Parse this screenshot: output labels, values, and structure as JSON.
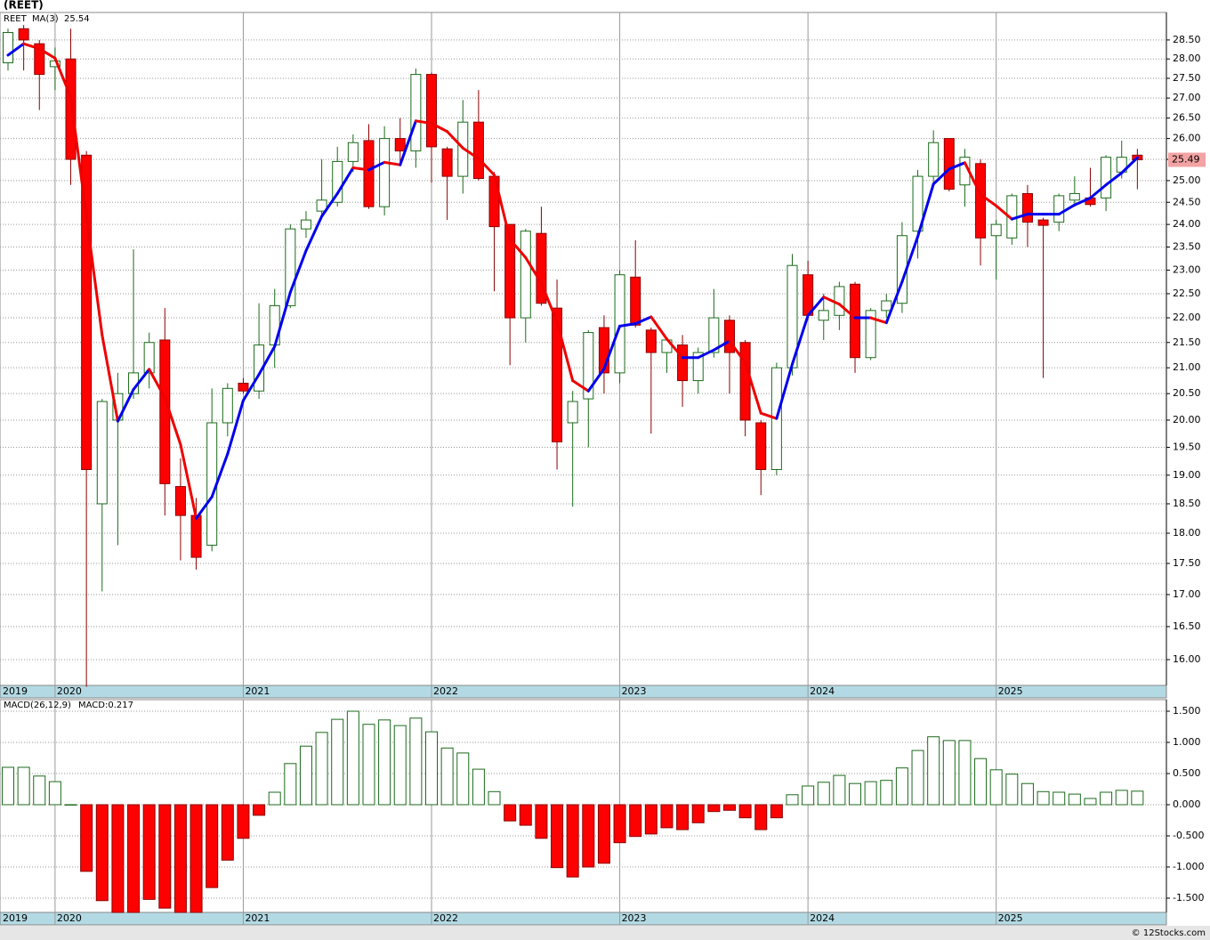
{
  "chart_data": [
    {
      "type": "candlestick",
      "title": "(REET)",
      "name": "REET",
      "categories": [
        "2019",
        null,
        null,
        "2020",
        null,
        null,
        null,
        null,
        null,
        null,
        null,
        null,
        null,
        null,
        null,
        "2021",
        null,
        null,
        null,
        null,
        null,
        null,
        null,
        null,
        null,
        null,
        null,
        "2022",
        null,
        null,
        null,
        null,
        null,
        null,
        null,
        null,
        null,
        null,
        null,
        "2023",
        null,
        null,
        null,
        null,
        null,
        null,
        null,
        null,
        null,
        null,
        null,
        "2024",
        null,
        null,
        null,
        null,
        null,
        null,
        null,
        null,
        null,
        null,
        null,
        "2025",
        null,
        null,
        null,
        null,
        null,
        null,
        null,
        null,
        null
      ],
      "open": [
        27.9,
        28.8,
        28.4,
        27.8,
        28.0,
        25.6,
        18.5,
        20.0,
        20.5,
        20.9,
        21.55,
        18.8,
        18.3,
        17.8,
        19.95,
        20.7,
        20.55,
        21.45,
        22.25,
        23.9,
        24.3,
        24.5,
        25.45,
        25.95,
        24.4,
        26.0,
        25.7,
        27.6,
        25.75,
        25.1,
        26.4,
        25.1,
        24.0,
        22.0,
        23.8,
        22.2,
        19.95,
        20.4,
        21.8,
        20.9,
        22.85,
        21.75,
        21.3,
        21.45,
        20.75,
        21.3,
        21.95,
        21.5,
        19.95,
        19.1,
        21.0,
        22.9,
        21.95,
        22.05,
        22.7,
        21.2,
        22.15,
        22.3,
        23.85,
        25.1,
        26.0,
        24.9,
        25.4,
        23.75,
        23.7,
        24.7,
        24.1,
        24.05,
        24.55,
        24.6,
        24.6,
        25.2,
        25.6
      ],
      "high": [
        28.8,
        28.9,
        28.5,
        28.3,
        28.8,
        25.7,
        20.4,
        20.9,
        23.45,
        21.7,
        22.2,
        19.3,
        18.6,
        20.6,
        20.7,
        20.8,
        22.3,
        22.6,
        24.0,
        24.3,
        25.5,
        25.8,
        26.1,
        26.35,
        26.3,
        26.5,
        27.75,
        27.65,
        25.8,
        26.95,
        27.2,
        25.2,
        24.0,
        23.9,
        24.4,
        22.8,
        20.55,
        21.75,
        22.05,
        23.0,
        23.65,
        21.8,
        21.6,
        21.65,
        21.4,
        22.6,
        22.05,
        21.55,
        20.0,
        21.1,
        23.35,
        23.2,
        22.5,
        22.75,
        22.75,
        22.2,
        22.5,
        24.05,
        25.25,
        26.2,
        26.0,
        25.75,
        25.5,
        24.1,
        24.7,
        24.9,
        24.15,
        24.7,
        25.1,
        25.3,
        25.6,
        25.95,
        25.75
      ],
      "low": [
        27.7,
        27.7,
        26.7,
        27.2,
        24.9,
        15.6,
        17.05,
        17.8,
        20.4,
        20.6,
        18.3,
        17.55,
        17.4,
        17.7,
        19.7,
        20.5,
        20.4,
        21.0,
        22.2,
        23.7,
        24.2,
        24.4,
        25.2,
        24.35,
        24.2,
        25.4,
        25.3,
        24.95,
        24.1,
        24.7,
        25.0,
        22.55,
        21.05,
        21.5,
        22.25,
        19.1,
        18.45,
        19.5,
        20.5,
        20.7,
        21.8,
        19.75,
        20.9,
        20.25,
        20.5,
        21.2,
        20.5,
        19.7,
        18.65,
        19.0,
        20.85,
        21.95,
        21.55,
        21.75,
        20.9,
        21.15,
        22.0,
        22.1,
        23.25,
        24.95,
        24.75,
        24.4,
        23.1,
        22.8,
        23.55,
        23.5,
        20.8,
        23.85,
        24.4,
        24.4,
        24.3,
        25.05,
        24.8
      ],
      "close": [
        28.7,
        28.5,
        27.6,
        27.95,
        25.5,
        19.1,
        20.35,
        20.5,
        20.9,
        21.5,
        18.85,
        18.3,
        17.6,
        19.95,
        20.6,
        20.55,
        21.45,
        22.25,
        23.9,
        24.1,
        24.55,
        25.45,
        25.9,
        24.4,
        26.0,
        25.7,
        27.6,
        25.8,
        25.1,
        26.4,
        25.05,
        23.95,
        22.0,
        23.85,
        22.3,
        19.6,
        20.35,
        21.7,
        20.9,
        22.9,
        21.85,
        21.3,
        21.55,
        20.75,
        21.3,
        22.0,
        21.3,
        20.0,
        19.1,
        21.0,
        23.1,
        22.05,
        22.15,
        22.65,
        21.2,
        22.15,
        22.35,
        23.75,
        25.1,
        25.9,
        24.8,
        25.55,
        23.7,
        24.0,
        24.65,
        24.05,
        23.98,
        24.65,
        24.7,
        24.45,
        25.55,
        25.55,
        25.49
      ],
      "up_color": "#1b6b1b",
      "down_color": "#ff0000",
      "log_scale": true,
      "grid": true,
      "ylim": [
        15.62,
        29.24
      ],
      "yticks": [
        {
          "value": 16,
          "label": "16.00"
        },
        {
          "value": 16.5,
          "label": "16.50"
        },
        {
          "value": 17,
          "label": "17.00"
        },
        {
          "value": 17.5,
          "label": "17.50"
        },
        {
          "value": 18,
          "label": "18.00"
        },
        {
          "value": 18.5,
          "label": "18.50"
        },
        {
          "value": 19,
          "label": "19.00"
        },
        {
          "value": 19.5,
          "label": "19.50"
        },
        {
          "value": 20,
          "label": "20.00"
        },
        {
          "value": 20.5,
          "label": "20.50"
        },
        {
          "value": 21,
          "label": "21.00"
        },
        {
          "value": 21.5,
          "label": "21.50"
        },
        {
          "value": 22,
          "label": "22.00"
        },
        {
          "value": 22.5,
          "label": "22.50"
        },
        {
          "value": 23,
          "label": "23.00"
        },
        {
          "value": 23.5,
          "label": "23.50"
        },
        {
          "value": 24,
          "label": "24.00"
        },
        {
          "value": 24.5,
          "label": "24.50"
        },
        {
          "value": 25,
          "label": "25.00"
        },
        {
          "value": 25.5,
          "label": "25.50"
        },
        {
          "value": 26,
          "label": "26.00"
        },
        {
          "value": 26.5,
          "label": "26.50"
        },
        {
          "value": 27,
          "label": "27.00"
        },
        {
          "value": 27.5,
          "label": "27.50"
        },
        {
          "value": 28,
          "label": "28.00"
        },
        {
          "value": 28.5,
          "label": "28.50"
        }
      ],
      "overlay": {
        "name": "MA(3)",
        "up_color": "#0000ee",
        "down_color": "#ee0000",
        "values": [
          28.1,
          28.4,
          28.27,
          28.02,
          27.02,
          24.18,
          21.65,
          19.98,
          20.58,
          20.97,
          20.42,
          19.55,
          18.25,
          18.62,
          19.38,
          20.37,
          20.87,
          21.42,
          22.53,
          23.42,
          24.18,
          24.7,
          25.3,
          25.25,
          25.43,
          25.37,
          26.43,
          26.37,
          26.17,
          25.77,
          25.52,
          25.13,
          23.67,
          23.27,
          22.72,
          21.92,
          20.75,
          20.55,
          20.98,
          21.83,
          21.88,
          22.02,
          21.57,
          21.2,
          21.2,
          21.35,
          21.53,
          21.1,
          20.13,
          20.03,
          21.07,
          22.05,
          22.43,
          22.28,
          22.0,
          22.0,
          21.9,
          22.75,
          23.73,
          24.92,
          25.27,
          25.42,
          24.68,
          24.42,
          24.12,
          24.23,
          24.23,
          24.23,
          24.44,
          24.6,
          24.9,
          25.18,
          25.54
        ]
      },
      "price_tag_color": "#f3a3a3"
    },
    {
      "type": "bar",
      "name": "MACD(26,12,9)",
      "value_label": "MACD:0.217",
      "values": [
        0.6,
        0.6,
        0.46,
        0.37,
        0.0,
        -1.07,
        -1.54,
        -1.75,
        -1.75,
        -1.52,
        -1.66,
        -1.75,
        -1.75,
        -1.33,
        -0.89,
        -0.54,
        -0.17,
        0.2,
        0.66,
        0.94,
        1.16,
        1.37,
        1.5,
        1.29,
        1.36,
        1.27,
        1.39,
        1.17,
        0.91,
        0.83,
        0.57,
        0.21,
        -0.26,
        -0.33,
        -0.54,
        -1.01,
        -1.16,
        -1.0,
        -0.94,
        -0.61,
        -0.51,
        -0.47,
        -0.37,
        -0.4,
        -0.29,
        -0.11,
        -0.09,
        -0.21,
        -0.4,
        -0.21,
        0.16,
        0.3,
        0.36,
        0.47,
        0.34,
        0.37,
        0.39,
        0.59,
        0.87,
        1.09,
        1.03,
        1.03,
        0.74,
        0.56,
        0.49,
        0.34,
        0.21,
        0.2,
        0.17,
        0.1,
        0.2,
        0.23,
        0.217
      ],
      "up_color": "#1b6b1b",
      "down_color": "#ff0000",
      "grid": true,
      "ylim": [
        -1.729,
        1.686
      ],
      "yticks": [
        {
          "value": 1.5,
          "label": "1.500"
        },
        {
          "value": 1,
          "label": "1.000"
        },
        {
          "value": 0.5,
          "label": "0.500"
        },
        {
          "value": 0,
          "label": "0.000"
        },
        {
          "value": -0.5,
          "label": "-0.500"
        },
        {
          "value": -1,
          "label": "-1.000"
        },
        {
          "value": -1.5,
          "label": "-1.500"
        }
      ]
    }
  ],
  "footer": "© 12Stocks.com"
}
